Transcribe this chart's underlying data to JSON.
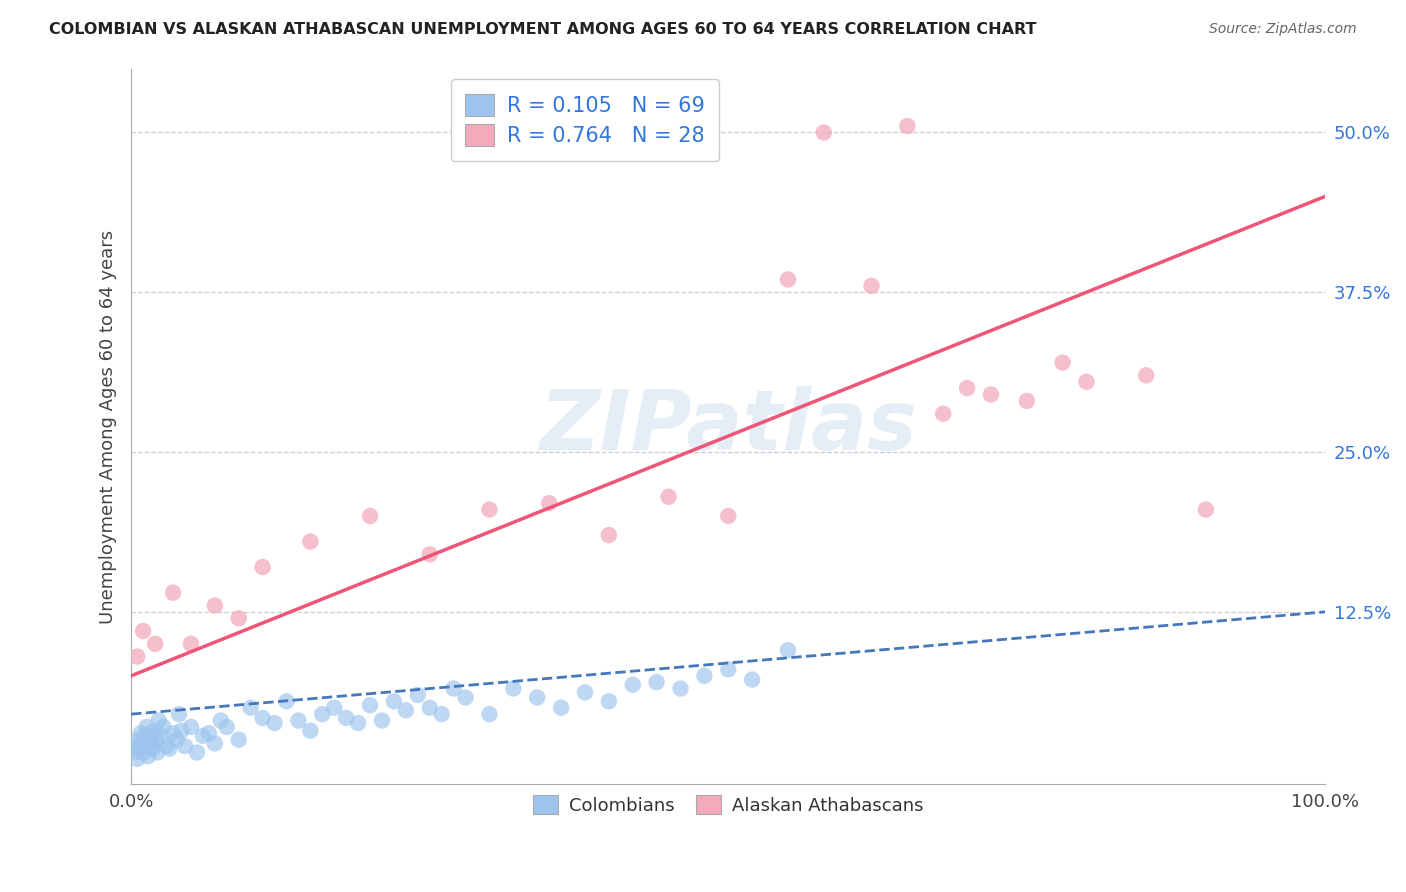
{
  "title": "COLOMBIAN VS ALASKAN ATHABASCAN UNEMPLOYMENT AMONG AGES 60 TO 64 YEARS CORRELATION CHART",
  "source": "Source: ZipAtlas.com",
  "ylabel": "Unemployment Among Ages 60 to 64 years",
  "xlabel": "",
  "xlim": [
    0,
    100
  ],
  "ylim": [
    -1,
    55
  ],
  "blue_R": 0.105,
  "blue_N": 69,
  "pink_R": 0.764,
  "pink_N": 28,
  "blue_color": "#9CC4EE",
  "pink_color": "#F4AABB",
  "blue_line_color": "#4477BB",
  "pink_line_color": "#EE5577",
  "text_blue_color": "#3377DD",
  "title_color": "#222222",
  "source_color": "#666666",
  "ylabel_color": "#444444",
  "ytick_values": [
    12.5,
    25.0,
    37.5,
    50.0
  ],
  "ytick_labels": [
    "12.5%",
    "25.0%",
    "37.5%",
    "50.0%"
  ],
  "blue_line_x0": 0,
  "blue_line_x1": 100,
  "blue_line_y0": 4.5,
  "blue_line_y1": 12.5,
  "pink_line_x0": 0,
  "pink_line_x1": 100,
  "pink_line_y0": 7.5,
  "pink_line_y1": 45.0,
  "blue_x": [
    0.3,
    0.4,
    0.5,
    0.6,
    0.7,
    0.8,
    0.9,
    1.0,
    1.1,
    1.2,
    1.3,
    1.4,
    1.5,
    1.6,
    1.7,
    1.8,
    2.0,
    2.1,
    2.2,
    2.3,
    2.5,
    2.7,
    3.0,
    3.2,
    3.5,
    3.8,
    4.0,
    4.2,
    4.5,
    5.0,
    5.5,
    6.0,
    6.5,
    7.0,
    7.5,
    8.0,
    9.0,
    10.0,
    11.0,
    12.0,
    13.0,
    14.0,
    15.0,
    16.0,
    17.0,
    18.0,
    19.0,
    20.0,
    21.0,
    22.0,
    23.0,
    24.0,
    25.0,
    26.0,
    27.0,
    28.0,
    30.0,
    32.0,
    34.0,
    36.0,
    38.0,
    40.0,
    42.0,
    44.0,
    46.0,
    48.0,
    50.0,
    52.0,
    55.0
  ],
  "blue_y": [
    1.5,
    2.0,
    1.0,
    2.5,
    1.8,
    3.0,
    2.2,
    1.5,
    2.8,
    2.0,
    3.5,
    1.2,
    2.5,
    3.0,
    2.0,
    1.8,
    3.2,
    2.5,
    1.5,
    4.0,
    2.8,
    3.5,
    2.0,
    1.8,
    3.0,
    2.5,
    4.5,
    3.2,
    2.0,
    3.5,
    1.5,
    2.8,
    3.0,
    2.2,
    4.0,
    3.5,
    2.5,
    5.0,
    4.2,
    3.8,
    5.5,
    4.0,
    3.2,
    4.5,
    5.0,
    4.2,
    3.8,
    5.2,
    4.0,
    5.5,
    4.8,
    6.0,
    5.0,
    4.5,
    6.5,
    5.8,
    4.5,
    6.5,
    5.8,
    5.0,
    6.2,
    5.5,
    6.8,
    7.0,
    6.5,
    7.5,
    8.0,
    7.2,
    9.5
  ],
  "pink_x": [
    0.5,
    1.0,
    2.0,
    3.5,
    5.0,
    7.0,
    9.0,
    11.0,
    15.0,
    20.0,
    25.0,
    30.0,
    35.0,
    40.0,
    45.0,
    50.0,
    55.0,
    58.0,
    62.0,
    65.0,
    68.0,
    70.0,
    72.0,
    75.0,
    78.0,
    80.0,
    85.0,
    90.0
  ],
  "pink_y": [
    9.0,
    11.0,
    10.0,
    14.0,
    10.0,
    13.0,
    12.0,
    16.0,
    18.0,
    20.0,
    17.0,
    20.5,
    21.0,
    18.5,
    21.5,
    20.0,
    38.5,
    50.0,
    38.0,
    50.5,
    28.0,
    30.0,
    29.5,
    29.0,
    32.0,
    30.5,
    31.0,
    20.5
  ],
  "watermark": "ZIPatlas",
  "watermark_color": "#CCDDEE",
  "background_color": "#FFFFFF"
}
